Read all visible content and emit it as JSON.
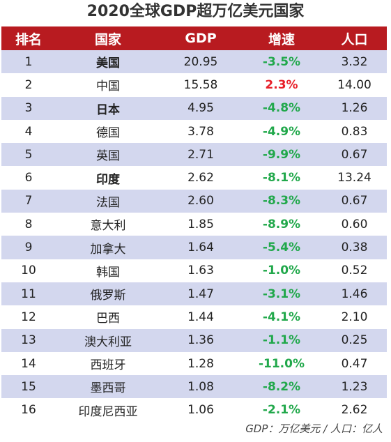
{
  "title": "2020全球GDP超万亿美元国家",
  "headers": {
    "rank": "排名",
    "country": "国家",
    "gdp": "GDP",
    "growth": "增速",
    "population": "人口"
  },
  "rows": [
    {
      "rank": "1",
      "country": "美国",
      "gdp": "20.95",
      "growth": "-3.5%",
      "population": "3.32",
      "bold": true
    },
    {
      "rank": "2",
      "country": "中国",
      "gdp": "15.58",
      "growth": "2.3%",
      "population": "14.00",
      "bold": false
    },
    {
      "rank": "3",
      "country": "日本",
      "gdp": "4.95",
      "growth": "-4.8%",
      "population": "1.26",
      "bold": true
    },
    {
      "rank": "4",
      "country": "德国",
      "gdp": "3.78",
      "growth": "-4.9%",
      "population": "0.83",
      "bold": false
    },
    {
      "rank": "5",
      "country": "英国",
      "gdp": "2.71",
      "growth": "-9.9%",
      "population": "0.67",
      "bold": false
    },
    {
      "rank": "6",
      "country": "印度",
      "gdp": "2.62",
      "growth": "-8.1%",
      "population": "13.24",
      "bold": true
    },
    {
      "rank": "7",
      "country": "法国",
      "gdp": "2.60",
      "growth": "-8.3%",
      "population": "0.67",
      "bold": false
    },
    {
      "rank": "8",
      "country": "意大利",
      "gdp": "1.85",
      "growth": "-8.9%",
      "population": "0.60",
      "bold": false
    },
    {
      "rank": "9",
      "country": "加拿大",
      "gdp": "1.64",
      "growth": "-5.4%",
      "population": "0.38",
      "bold": false
    },
    {
      "rank": "10",
      "country": "韩国",
      "gdp": "1.63",
      "growth": "-1.0%",
      "population": "0.52",
      "bold": false
    },
    {
      "rank": "11",
      "country": "俄罗斯",
      "gdp": "1.47",
      "growth": "-3.1%",
      "population": "1.46",
      "bold": false
    },
    {
      "rank": "12",
      "country": "巴西",
      "gdp": "1.44",
      "growth": "-4.1%",
      "population": "2.10",
      "bold": false
    },
    {
      "rank": "13",
      "country": "澳大利亚",
      "gdp": "1.36",
      "growth": "-1.1%",
      "population": "0.25",
      "bold": false
    },
    {
      "rank": "14",
      "country": "西班牙",
      "gdp": "1.28",
      "growth": "-11.0%",
      "population": "0.47",
      "bold": false
    },
    {
      "rank": "15",
      "country": "墨西哥",
      "gdp": "1.08",
      "growth": "-8.2%",
      "population": "1.23",
      "bold": false
    },
    {
      "rank": "16",
      "country": "印度尼西亚",
      "gdp": "1.06",
      "growth": "-2.1%",
      "population": "2.62",
      "bold": false
    }
  ],
  "footer": "GDP：万亿美元 / 人口：亿人",
  "colors": {
    "header_bg": "#b81b20",
    "row_stripe": "#d3d7ee",
    "negative": "#21a84b",
    "positive": "#e8202a"
  }
}
